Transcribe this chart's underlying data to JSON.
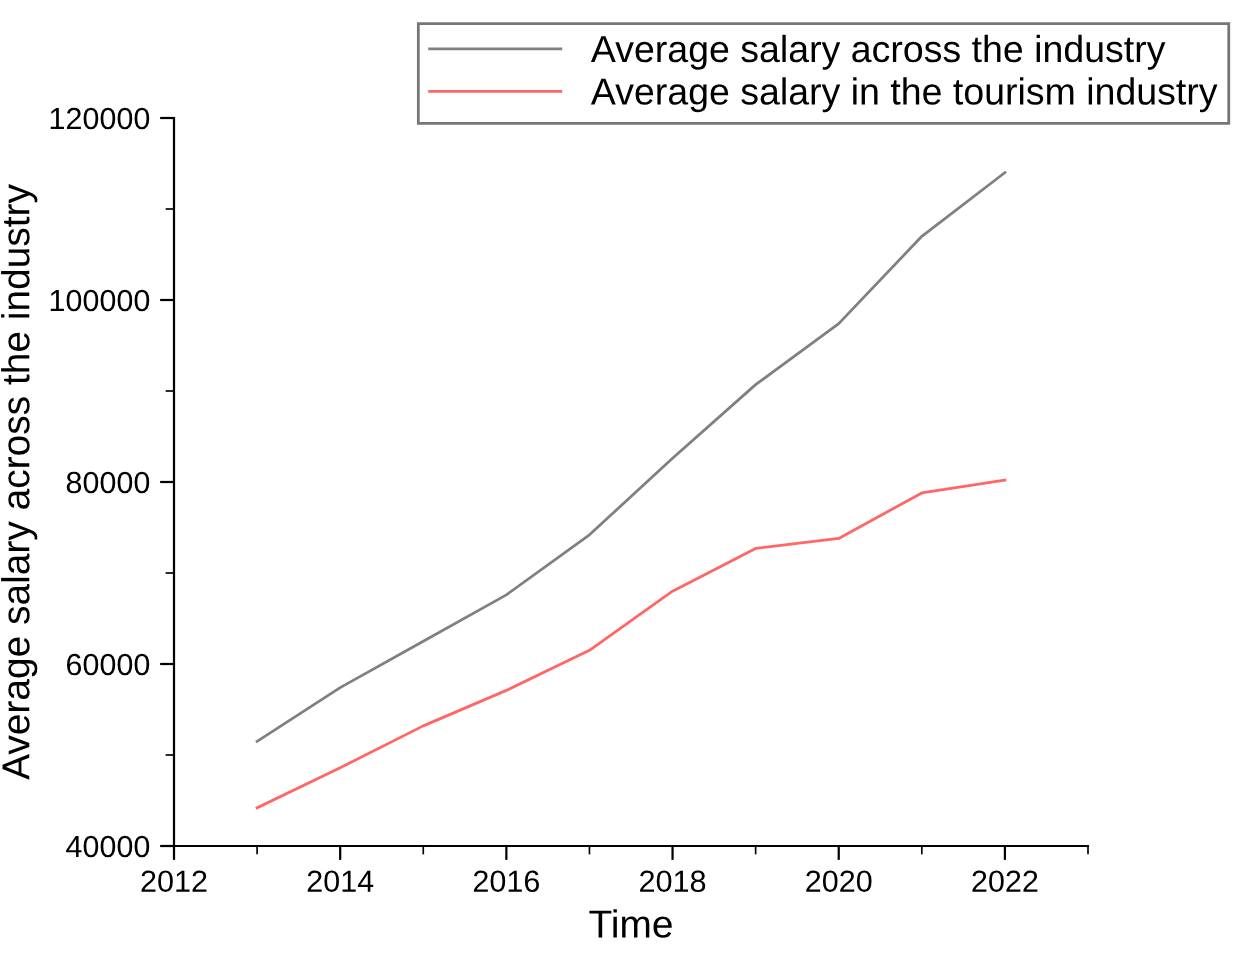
{
  "chart_data": {
    "type": "line",
    "xlabel": "Time",
    "ylabel": "Average salary across the industry",
    "x": [
      2013,
      2014,
      2015,
      2016,
      2017,
      2018,
      2019,
      2020,
      2021,
      2022
    ],
    "series": [
      {
        "name": "Average salary across the industry",
        "color": "#808080",
        "values": [
          51500,
          57400,
          62500,
          67600,
          74200,
          82600,
          90700,
          97400,
          107000,
          114000
        ]
      },
      {
        "name": "Average salary in the tourism industry",
        "color": "#ff6666",
        "values": [
          44200,
          48600,
          53200,
          57100,
          61500,
          68000,
          72700,
          73800,
          78800,
          80200
        ]
      }
    ],
    "xlim": [
      2012,
      2023
    ],
    "xticks": [
      2012,
      2014,
      2016,
      2018,
      2020,
      2022
    ],
    "ylim": [
      40000,
      120000
    ],
    "yticks": [
      40000,
      60000,
      80000,
      100000,
      120000
    ],
    "grid": false,
    "legend": "top right",
    "marker": "none",
    "line_style": "solid"
  }
}
